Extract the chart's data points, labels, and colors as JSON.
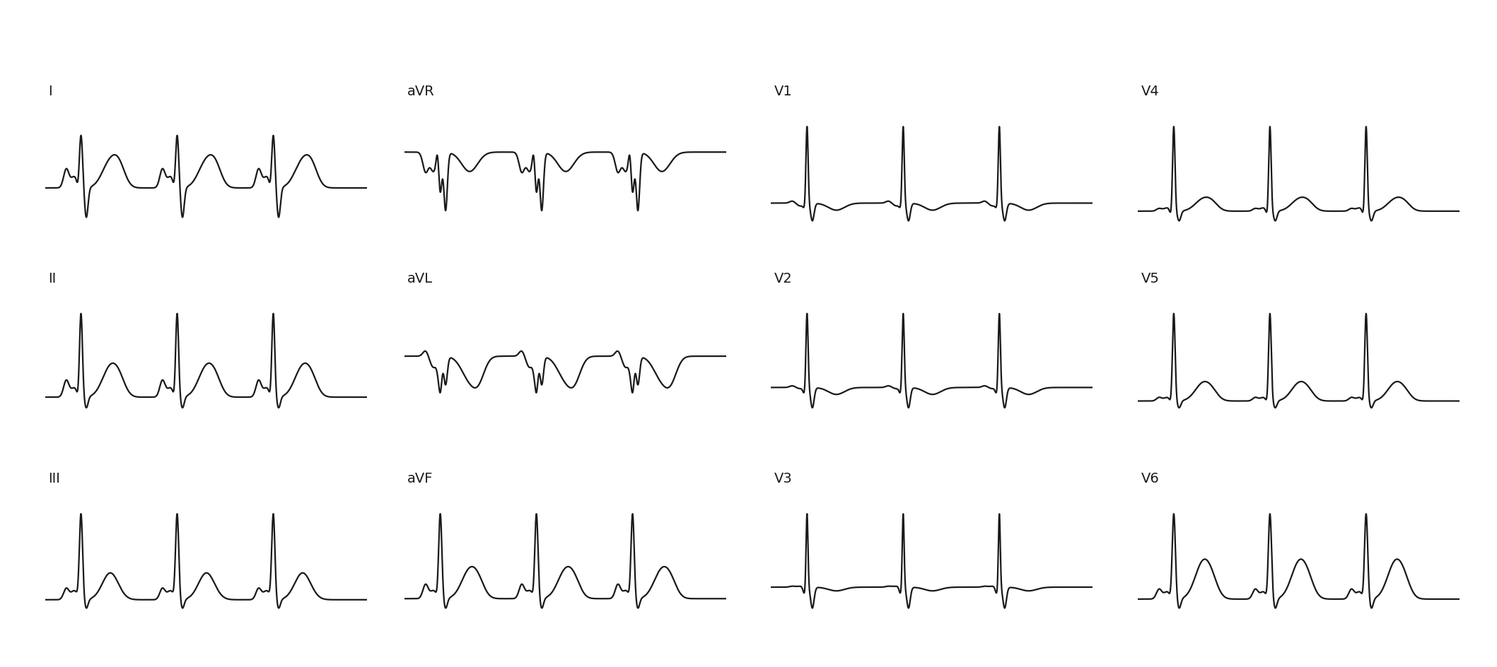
{
  "background_color": "#ffffff",
  "line_color": "#1a1a1a",
  "line_width": 1.6,
  "layout": [
    [
      "I",
      "aVR",
      "V1",
      "V4"
    ],
    [
      "II",
      "aVL",
      "V2",
      "V5"
    ],
    [
      "III",
      "aVF",
      "V3",
      "V6"
    ]
  ],
  "label_fontsize": 14,
  "num_beats": 3,
  "beat_duration": 0.72,
  "fs": 1000
}
